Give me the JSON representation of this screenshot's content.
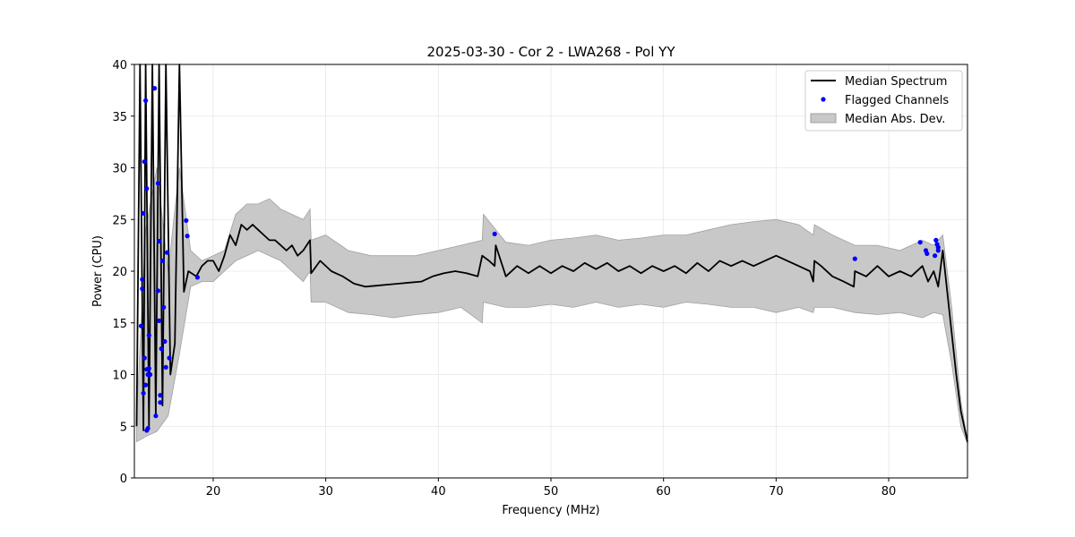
{
  "chart_data": {
    "type": "line",
    "title": "2025-03-30 - Cor 2 - LWA268 - Pol YY",
    "xlabel": "Frequency (MHz)",
    "ylabel": "Power (CPU)",
    "xlim": [
      13,
      87
    ],
    "ylim": [
      0,
      40
    ],
    "xticks": [
      20,
      30,
      40,
      50,
      60,
      70,
      80
    ],
    "yticks": [
      0,
      5,
      10,
      15,
      20,
      25,
      30,
      35,
      40
    ],
    "grid": true,
    "legend_position": "top-right",
    "legend": [
      "Median Spectrum",
      "Flagged Channels",
      "Median Abs. Dev."
    ],
    "colors": {
      "median": "#000000",
      "flagged": "#0000ff",
      "mad_fill": "#c8c8c8",
      "mad_edge": "#a0a0a0"
    },
    "series": [
      {
        "name": "Median Spectrum",
        "x": [
          13.2,
          13.5,
          13.8,
          14.0,
          14.3,
          14.6,
          14.9,
          15.2,
          15.5,
          15.8,
          16.2,
          16.6,
          17.0,
          17.4,
          17.8,
          18.5,
          19.0,
          19.5,
          20.0,
          20.5,
          21.0,
          21.5,
          22.0,
          22.5,
          23.0,
          23.5,
          24.0,
          24.5,
          25.0,
          25.5,
          26.0,
          26.5,
          27.0,
          27.5,
          28.0,
          28.6,
          28.7,
          29.5,
          30.5,
          31.5,
          32.5,
          33.5,
          34.5,
          35.5,
          36.5,
          37.5,
          38.5,
          39.5,
          40.5,
          41.5,
          42.5,
          43.5,
          43.9,
          44.5,
          45.0,
          45.1,
          46.0,
          47.0,
          48.0,
          49.0,
          50.0,
          51.0,
          52.0,
          53.0,
          54.0,
          55.0,
          56.0,
          57.0,
          58.0,
          59.0,
          60.0,
          61.0,
          62.0,
          63.0,
          64.0,
          65.0,
          66.0,
          67.0,
          68.0,
          69.0,
          70.0,
          71.0,
          72.0,
          73.0,
          73.3,
          73.4,
          74.0,
          75.0,
          76.0,
          76.9,
          77.0,
          78.0,
          79.0,
          80.0,
          81.0,
          82.0,
          83.0,
          83.5,
          84.0,
          84.4,
          84.8,
          85.2,
          85.6,
          86.0,
          86.4,
          86.8,
          87.0
        ],
        "y": [
          5.0,
          40.0,
          4.6,
          40.0,
          5.0,
          40.0,
          6.0,
          40.0,
          7.0,
          40.0,
          10.0,
          13.0,
          40.0,
          18.0,
          20.0,
          19.5,
          20.5,
          21.0,
          21.0,
          20.0,
          21.5,
          23.5,
          22.5,
          24.5,
          24.0,
          24.5,
          24.0,
          23.5,
          23.0,
          23.0,
          22.5,
          22.0,
          22.5,
          21.5,
          22.0,
          23.0,
          19.8,
          21.0,
          20.0,
          19.5,
          18.8,
          18.5,
          18.6,
          18.7,
          18.8,
          18.9,
          19.0,
          19.5,
          19.8,
          20.0,
          19.8,
          19.5,
          21.5,
          21.0,
          20.5,
          22.5,
          19.5,
          20.5,
          19.8,
          20.5,
          19.8,
          20.5,
          20.0,
          20.8,
          20.2,
          20.8,
          20.0,
          20.5,
          19.8,
          20.5,
          20.0,
          20.5,
          19.8,
          20.8,
          20.0,
          21.0,
          20.5,
          21.0,
          20.5,
          21.0,
          21.5,
          21.0,
          20.5,
          20.0,
          19.0,
          21.0,
          20.5,
          19.5,
          19.0,
          18.5,
          20.0,
          19.5,
          20.5,
          19.5,
          20.0,
          19.5,
          20.5,
          19.0,
          20.0,
          18.5,
          22.0,
          18.0,
          14.0,
          10.0,
          6.5,
          4.5,
          3.5
        ]
      },
      {
        "name": "Median Abs. Dev.",
        "x": [
          13.2,
          14.0,
          15.0,
          16.0,
          17.0,
          18.0,
          19.0,
          20.0,
          21.0,
          22.0,
          23.0,
          24.0,
          25.0,
          26.0,
          27.0,
          28.0,
          28.6,
          28.7,
          30.0,
          32.0,
          34.0,
          36.0,
          38.0,
          40.0,
          42.0,
          43.9,
          44.0,
          46.0,
          48.0,
          50.0,
          52.0,
          54.0,
          56.0,
          58.0,
          60.0,
          62.0,
          64.0,
          66.0,
          68.0,
          70.0,
          72.0,
          73.3,
          73.4,
          75.0,
          77.0,
          79.0,
          81.0,
          83.0,
          84.0,
          84.8,
          85.6,
          86.4,
          87.0
        ],
        "upper": [
          6.0,
          24.0,
          30.0,
          20.0,
          30.0,
          22.0,
          21.0,
          21.5,
          22.0,
          25.5,
          26.5,
          26.5,
          27.0,
          26.0,
          25.5,
          25.0,
          26.0,
          23.0,
          23.5,
          22.0,
          21.5,
          21.5,
          21.5,
          22.0,
          22.5,
          23.0,
          25.5,
          22.8,
          22.5,
          23.0,
          23.2,
          23.5,
          23.0,
          23.2,
          23.5,
          23.5,
          24.0,
          24.5,
          24.8,
          25.0,
          24.5,
          23.5,
          24.5,
          23.5,
          22.5,
          22.5,
          22.0,
          23.0,
          22.5,
          23.5,
          16.5,
          7.5,
          3.6
        ],
        "lower": [
          3.5,
          4.0,
          4.5,
          6.0,
          12.0,
          18.5,
          19.0,
          19.0,
          20.0,
          21.0,
          21.5,
          22.0,
          21.5,
          21.0,
          20.0,
          19.0,
          20.0,
          17.0,
          17.0,
          16.0,
          15.8,
          15.5,
          15.8,
          16.0,
          16.5,
          15.0,
          17.0,
          16.5,
          16.5,
          16.8,
          16.5,
          17.0,
          16.5,
          16.8,
          16.5,
          17.0,
          16.8,
          16.5,
          16.5,
          16.0,
          16.5,
          16.0,
          16.5,
          16.5,
          16.0,
          15.8,
          16.0,
          15.5,
          16.0,
          15.8,
          11.0,
          5.0,
          3.3
        ]
      },
      {
        "name": "Flagged Channels",
        "points": [
          [
            13.6,
            14.7
          ],
          [
            13.7,
            18.3
          ],
          [
            13.7,
            19.2
          ],
          [
            13.8,
            8.2
          ],
          [
            13.8,
            25.6
          ],
          [
            13.9,
            30.6
          ],
          [
            13.9,
            11.6
          ],
          [
            14.0,
            36.5
          ],
          [
            14.0,
            9.0
          ],
          [
            14.1,
            28.0
          ],
          [
            14.1,
            10.5
          ],
          [
            14.1,
            4.6
          ],
          [
            14.2,
            4.8
          ],
          [
            14.2,
            10.0
          ],
          [
            14.3,
            13.8
          ],
          [
            14.3,
            10.6
          ],
          [
            14.4,
            10.0
          ],
          [
            14.8,
            37.7
          ],
          [
            14.9,
            6.0
          ],
          [
            15.1,
            18.1
          ],
          [
            15.1,
            28.5
          ],
          [
            15.2,
            15.2
          ],
          [
            15.2,
            22.9
          ],
          [
            15.3,
            8.0
          ],
          [
            15.3,
            7.3
          ],
          [
            15.4,
            12.5
          ],
          [
            15.5,
            21.0
          ],
          [
            15.6,
            16.5
          ],
          [
            15.7,
            13.2
          ],
          [
            15.8,
            10.7
          ],
          [
            15.9,
            21.8
          ],
          [
            16.1,
            11.6
          ],
          [
            17.6,
            24.9
          ],
          [
            17.7,
            23.4
          ],
          [
            18.6,
            19.4
          ],
          [
            45.0,
            23.6
          ],
          [
            77.0,
            21.2
          ],
          [
            82.8,
            22.8
          ],
          [
            83.3,
            22.0
          ],
          [
            83.4,
            21.7
          ],
          [
            84.1,
            21.5
          ],
          [
            84.2,
            23.0
          ],
          [
            84.3,
            22.6
          ],
          [
            84.4,
            22.3
          ],
          [
            84.4,
            22.0
          ]
        ]
      }
    ]
  }
}
